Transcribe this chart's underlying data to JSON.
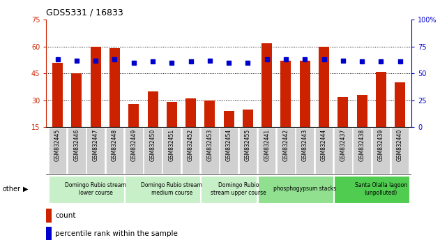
{
  "title": "GDS5331 / 16833",
  "samples": [
    "GSM832445",
    "GSM832446",
    "GSM832447",
    "GSM832448",
    "GSM832449",
    "GSM832450",
    "GSM832451",
    "GSM832452",
    "GSM832453",
    "GSM832454",
    "GSM832455",
    "GSM832441",
    "GSM832442",
    "GSM832443",
    "GSM832444",
    "GSM832437",
    "GSM832438",
    "GSM832439",
    "GSM832440"
  ],
  "counts": [
    51,
    45,
    60,
    59,
    28,
    35,
    29,
    31,
    30,
    24,
    25,
    62,
    52,
    52,
    60,
    32,
    33,
    46,
    40
  ],
  "percentiles_right": [
    63,
    62,
    62,
    63,
    60,
    61,
    60,
    61,
    62,
    60,
    60,
    63,
    63,
    63,
    63,
    62,
    61,
    61,
    61
  ],
  "groups": [
    {
      "label": "Domingo Rubio stream\nlower course",
      "start": 0,
      "end": 4,
      "color": "#c8f0c8"
    },
    {
      "label": "Domingo Rubio stream\nmedium course",
      "start": 4,
      "end": 8,
      "color": "#c8f0c8"
    },
    {
      "label": "Domingo Rubio\nstream upper course",
      "start": 8,
      "end": 11,
      "color": "#c8f0c8"
    },
    {
      "label": "phosphogypsum stacks",
      "start": 11,
      "end": 15,
      "color": "#90e090"
    },
    {
      "label": "Santa Olalla lagoon\n(unpolluted)",
      "start": 15,
      "end": 19,
      "color": "#50cc50"
    }
  ],
  "ylim_left": [
    15,
    75
  ],
  "ylim_right": [
    0,
    100
  ],
  "yticks_left": [
    15,
    30,
    45,
    60,
    75
  ],
  "yticks_right": [
    0,
    25,
    50,
    75,
    100
  ],
  "bar_color": "#cc2200",
  "dot_color": "#0000cc",
  "xtick_bg": "#d0d0d0",
  "legend_count_label": "count",
  "legend_pct_label": "percentile rank within the sample",
  "other_label": "other",
  "grid_lines": [
    30,
    45,
    60
  ]
}
